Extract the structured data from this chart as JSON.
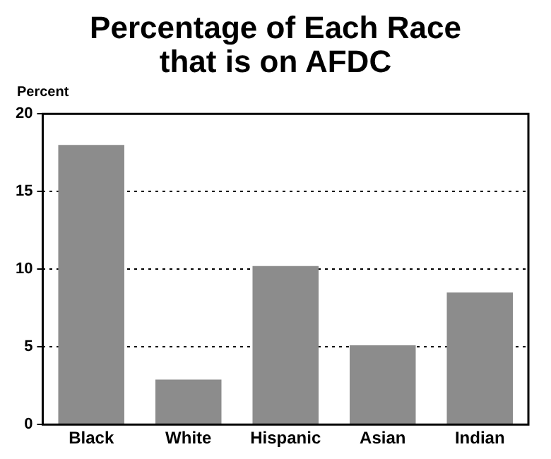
{
  "chart_data": {
    "type": "bar",
    "title": "Percentage of Each Race\nthat is on AFDC",
    "ylabel": "Percent",
    "categories": [
      "Black",
      "White",
      "Hispanic",
      "Asian",
      "Indian"
    ],
    "values": [
      18,
      2.9,
      10.2,
      5.1,
      8.5
    ],
    "color": "#8c8c8c",
    "ylim": [
      0,
      20
    ],
    "yticks": [
      0,
      5,
      10,
      15,
      20
    ],
    "grid": "y"
  }
}
